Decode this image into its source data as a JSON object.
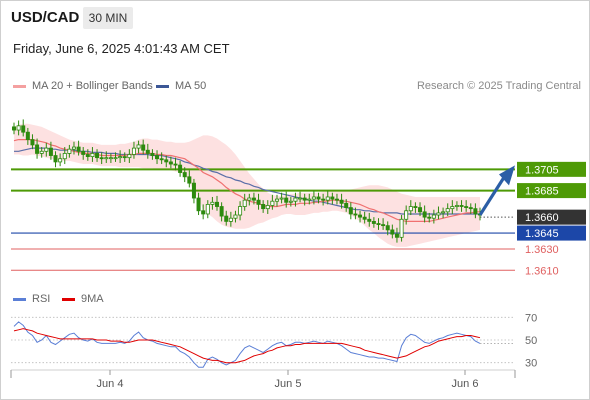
{
  "header": {
    "symbol": "USD/CAD",
    "timeframe": "30 MIN",
    "datetime": "Friday, June 6, 2025 4:01:43 AM CET"
  },
  "legend": {
    "ma20": "MA 20 + Bollinger Bands",
    "ma50": "MA 50",
    "credit": "Research © 2025 Trading Central"
  },
  "colors": {
    "support_line": "#1c47a8",
    "resistance_line": "#4e9a06",
    "minor_level": "#e06060",
    "candle": "#2d8a0e",
    "bollinger": "#fcd7d7",
    "ma20": "#f07070",
    "ma50": "#5a6ea8",
    "arrow": "#2b5ea6",
    "current": "#333333"
  },
  "chart_data": [
    {
      "type": "candlestick",
      "ylim": [
        1.3598,
        1.3775
      ],
      "levels": [
        {
          "value": 1.3705,
          "label": "1.3705",
          "kind": "resistance"
        },
        {
          "value": 1.3685,
          "label": "1.3685",
          "kind": "resistance"
        },
        {
          "value": 1.366,
          "label": "1.3660",
          "kind": "current"
        },
        {
          "value": 1.3645,
          "label": "1.3645",
          "kind": "support"
        },
        {
          "value": 1.363,
          "label": "1.3630",
          "kind": "minor"
        },
        {
          "value": 1.361,
          "label": "1.3610",
          "kind": "minor"
        }
      ],
      "x_ticks": [
        "Jun 4",
        "Jun 5",
        "Jun 6"
      ],
      "arrow": {
        "from": 1.3662,
        "to": 1.3705
      },
      "close": [
        1.3742,
        1.3746,
        1.374,
        1.3733,
        1.3728,
        1.372,
        1.3722,
        1.3725,
        1.3718,
        1.3712,
        1.3715,
        1.372,
        1.3724,
        1.3726,
        1.3722,
        1.3719,
        1.3717,
        1.372,
        1.3716,
        1.3715,
        1.3716,
        1.3716,
        1.3716,
        1.3717,
        1.3716,
        1.3719,
        1.3725,
        1.3728,
        1.3723,
        1.372,
        1.3718,
        1.3715,
        1.3714,
        1.3712,
        1.371,
        1.3709,
        1.3702,
        1.3698,
        1.3692,
        1.3678,
        1.3666,
        1.3663,
        1.3672,
        1.3674,
        1.367,
        1.3661,
        1.3656,
        1.3659,
        1.3662,
        1.367,
        1.3676,
        1.3678,
        1.3676,
        1.3672,
        1.3668,
        1.3671,
        1.3675,
        1.3677,
        1.3678,
        1.3674,
        1.3675,
        1.3678,
        1.3678,
        1.3676,
        1.3677,
        1.3679,
        1.3677,
        1.3676,
        1.3679,
        1.3677,
        1.3676,
        1.3673,
        1.3669,
        1.3663,
        1.3662,
        1.366,
        1.3658,
        1.3656,
        1.3654,
        1.3653,
        1.3652,
        1.3648,
        1.3644,
        1.3641,
        1.3658,
        1.3666,
        1.367,
        1.3669,
        1.3665,
        1.366,
        1.3659,
        1.3662,
        1.3664,
        1.3665,
        1.3668,
        1.367,
        1.3671,
        1.367,
        1.3669,
        1.3668,
        1.3663,
        1.3662
      ],
      "ma20": [
        1.3732,
        1.3733,
        1.3733,
        1.3733,
        1.3733,
        1.3732,
        1.3731,
        1.373,
        1.3728,
        1.3727,
        1.3725,
        1.3724,
        1.3723,
        1.3722,
        1.3721,
        1.372,
        1.372,
        1.372,
        1.3719,
        1.3718,
        1.3718,
        1.3718,
        1.3718,
        1.3718,
        1.3718,
        1.3719,
        1.3719,
        1.372,
        1.372,
        1.372,
        1.372,
        1.3719,
        1.3719,
        1.3718,
        1.3718,
        1.3717,
        1.3716,
        1.3715,
        1.3712,
        1.3709,
        1.3706,
        1.3702,
        1.37,
        1.3698,
        1.3695,
        1.3692,
        1.3688,
        1.3685,
        1.3682,
        1.368,
        1.3677,
        1.3675,
        1.3674,
        1.3673,
        1.3671,
        1.367,
        1.367,
        1.367,
        1.3671,
        1.3672,
        1.3672,
        1.3672,
        1.3673,
        1.3673,
        1.3673,
        1.3674,
        1.3674,
        1.3675,
        1.3675,
        1.3676,
        1.3676,
        1.3675,
        1.3675,
        1.3674,
        1.3673,
        1.3672,
        1.367,
        1.3668,
        1.3667,
        1.3665,
        1.3664,
        1.3662,
        1.366,
        1.3658,
        1.3657,
        1.3656,
        1.3656,
        1.3656,
        1.3656,
        1.3656,
        1.3656,
        1.3657,
        1.3658,
        1.3659,
        1.366,
        1.3661,
        1.3662,
        1.3663,
        1.3664,
        1.3664,
        1.3665,
        1.3665
      ],
      "ma50": [
        1.3722,
        1.3722,
        1.3723,
        1.3724,
        1.3725,
        1.3725,
        1.3725,
        1.3725,
        1.3724,
        1.3724,
        1.3723,
        1.3723,
        1.3723,
        1.3723,
        1.3722,
        1.3722,
        1.3722,
        1.3721,
        1.3721,
        1.3721,
        1.372,
        1.372,
        1.372,
        1.3719,
        1.3719,
        1.3719,
        1.3719,
        1.3719,
        1.3719,
        1.3719,
        1.3718,
        1.3718,
        1.3718,
        1.3717,
        1.3716,
        1.3715,
        1.3714,
        1.3712,
        1.3711,
        1.3709,
        1.3708,
        1.3706,
        1.3705,
        1.3703,
        1.3702,
        1.37,
        1.3698,
        1.3697,
        1.3695,
        1.3694,
        1.3692,
        1.3691,
        1.3689,
        1.3688,
        1.3686,
        1.3685,
        1.3684,
        1.3683,
        1.3682,
        1.3681,
        1.368,
        1.3679,
        1.3678,
        1.3677,
        1.3676,
        1.3675,
        1.3675,
        1.3674,
        1.3673,
        1.3672,
        1.3671,
        1.367,
        1.3669,
        1.3668,
        1.3667,
        1.3667,
        1.3666,
        1.3666,
        1.3665,
        1.3665,
        1.3664,
        1.3664,
        1.3664,
        1.3664,
        1.3663,
        1.3663,
        1.3663,
        1.3663,
        1.3663,
        1.3663,
        1.3663,
        1.3663,
        1.3663,
        1.3663,
        1.3663,
        1.3663,
        1.3663,
        1.3663,
        1.3663,
        1.3663,
        1.3663,
        1.3663
      ],
      "bb_upper": [
        1.3745,
        1.3747,
        1.3748,
        1.3748,
        1.3747,
        1.3746,
        1.3745,
        1.3743,
        1.3741,
        1.3739,
        1.3737,
        1.3735,
        1.3733,
        1.3732,
        1.3731,
        1.373,
        1.373,
        1.373,
        1.3729,
        1.3728,
        1.3728,
        1.3728,
        1.3728,
        1.3729,
        1.3729,
        1.373,
        1.3731,
        1.3733,
        1.3734,
        1.3734,
        1.3733,
        1.3733,
        1.3732,
        1.3731,
        1.3731,
        1.373,
        1.373,
        1.373,
        1.3731,
        1.3733,
        1.3735,
        1.3737,
        1.3737,
        1.3736,
        1.3734,
        1.3731,
        1.3728,
        1.3724,
        1.3719,
        1.3713,
        1.3707,
        1.3701,
        1.3696,
        1.3691,
        1.3687,
        1.3683,
        1.3681,
        1.368,
        1.368,
        1.3681,
        1.3682,
        1.3682,
        1.3683,
        1.3683,
        1.3683,
        1.3683,
        1.3683,
        1.3684,
        1.3684,
        1.3685,
        1.3685,
        1.3685,
        1.3685,
        1.3686,
        1.3687,
        1.3688,
        1.3689,
        1.369,
        1.369,
        1.369,
        1.3689,
        1.3688,
        1.3686,
        1.3684,
        1.3682,
        1.3681,
        1.368,
        1.3679,
        1.3679,
        1.3679,
        1.3679,
        1.3679,
        1.3679,
        1.3679,
        1.3679,
        1.3679,
        1.3679,
        1.3679,
        1.3679,
        1.3679,
        1.3679,
        1.3679
      ],
      "bb_lower": [
        1.3719,
        1.3719,
        1.3718,
        1.3718,
        1.3719,
        1.3718,
        1.3717,
        1.3716,
        1.3715,
        1.3714,
        1.3713,
        1.3713,
        1.3713,
        1.3712,
        1.3711,
        1.371,
        1.371,
        1.371,
        1.3709,
        1.3708,
        1.3708,
        1.3708,
        1.3708,
        1.3707,
        1.3707,
        1.3707,
        1.3707,
        1.3707,
        1.3706,
        1.3706,
        1.3706,
        1.3705,
        1.3705,
        1.3705,
        1.3704,
        1.3703,
        1.3702,
        1.37,
        1.3693,
        1.3685,
        1.3677,
        1.3667,
        1.3663,
        1.366,
        1.3656,
        1.3653,
        1.3651,
        1.365,
        1.3649,
        1.3649,
        1.3649,
        1.365,
        1.3652,
        1.3654,
        1.3655,
        1.3657,
        1.3659,
        1.366,
        1.3662,
        1.3663,
        1.3663,
        1.3662,
        1.3662,
        1.3662,
        1.3663,
        1.3664,
        1.3664,
        1.3665,
        1.3665,
        1.3666,
        1.3666,
        1.3665,
        1.3664,
        1.3662,
        1.3659,
        1.3656,
        1.3652,
        1.3648,
        1.3645,
        1.3641,
        1.3638,
        1.3635,
        1.3633,
        1.3632,
        1.3632,
        1.3632,
        1.3633,
        1.3634,
        1.3635,
        1.3636,
        1.3637,
        1.3638,
        1.3639,
        1.364,
        1.3641,
        1.3642,
        1.3643,
        1.3644,
        1.3645,
        1.3646,
        1.3647,
        1.3648
      ]
    },
    {
      "type": "line",
      "legend": [
        "RSI",
        "9MA"
      ],
      "ylim": [
        20,
        80
      ],
      "y_ticks": [
        70,
        50,
        30
      ],
      "rsi": [
        62,
        66,
        63,
        57,
        54,
        48,
        50,
        54,
        48,
        46,
        49,
        52,
        55,
        56,
        52,
        50,
        49,
        51,
        48,
        47,
        47,
        47,
        47,
        48,
        47,
        49,
        54,
        57,
        52,
        50,
        49,
        47,
        46,
        45,
        44,
        44,
        40,
        38,
        35,
        30,
        26,
        26,
        33,
        35,
        33,
        30,
        28,
        30,
        32,
        38,
        43,
        45,
        43,
        41,
        39,
        42,
        45,
        47,
        48,
        45,
        46,
        48,
        48,
        47,
        48,
        49,
        48,
        47,
        49,
        48,
        47,
        45,
        42,
        39,
        38,
        37,
        36,
        35,
        35,
        34,
        34,
        33,
        32,
        31,
        45,
        52,
        55,
        54,
        51,
        48,
        47,
        49,
        51,
        52,
        54,
        55,
        56,
        55,
        54,
        53,
        49,
        47
      ],
      "ma9": [
        58,
        59,
        60,
        59,
        58,
        56,
        55,
        54,
        53,
        52,
        51,
        51,
        51,
        51,
        51,
        51,
        51,
        51,
        50,
        50,
        50,
        49,
        49,
        49,
        48,
        48,
        49,
        50,
        50,
        50,
        50,
        49,
        48,
        47,
        46,
        45,
        44,
        42,
        40,
        38,
        36,
        34,
        33,
        32,
        32,
        31,
        30,
        30,
        30,
        31,
        32,
        34,
        36,
        37,
        38,
        40,
        41,
        43,
        44,
        45,
        45,
        46,
        46,
        47,
        47,
        47,
        47,
        47,
        47,
        47,
        47,
        47,
        46,
        45,
        44,
        43,
        41,
        40,
        39,
        38,
        37,
        36,
        35,
        34,
        35,
        36,
        38,
        40,
        42,
        44,
        45,
        47,
        49,
        50,
        51,
        52,
        53,
        53,
        54,
        54,
        53,
        52
      ]
    }
  ]
}
